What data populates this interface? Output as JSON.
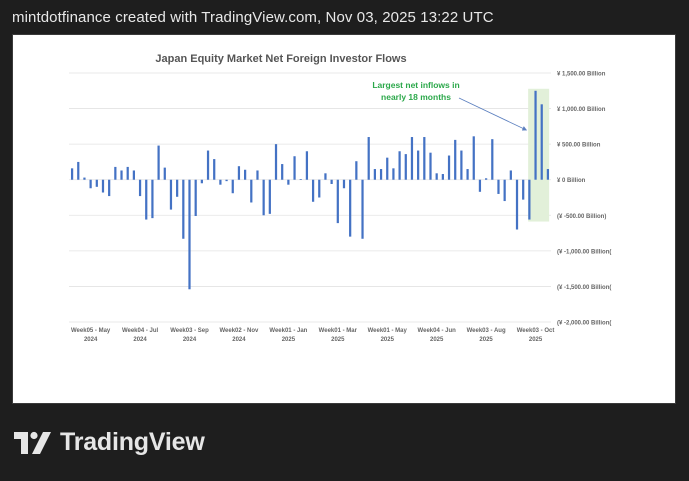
{
  "header": {
    "caption": "mintdotfinance created with TradingView.com, Nov 03, 2025 13:22 UTC"
  },
  "brand": {
    "name": "TradingView",
    "icon": "tradingview-logo-icon"
  },
  "colors": {
    "bar": "#4472C4",
    "highlight": "#E2F0D9",
    "annotation": "#2BA84A",
    "grid": "#E3E3E3"
  },
  "chart_data": {
    "type": "bar",
    "title": "Japan Equity Market Net Foreign Investor Flows",
    "ylim": [
      -2000,
      1500
    ],
    "yticks": [
      {
        "value": 1500,
        "label": "¥ 1,500.00 Billion"
      },
      {
        "value": 1000,
        "label": "¥ 1,000.00 Billion"
      },
      {
        "value": 500,
        "label": "¥ 500.00 Billion"
      },
      {
        "value": 0,
        "label": "¥ 0 Billion"
      },
      {
        "value": -500,
        "label": "(¥ -500.00 Billion)"
      },
      {
        "value": -1000,
        "label": "(¥ -1,000.00 Billion("
      },
      {
        "value": -1500,
        "label": "(¥ -1,500.00 Billion("
      },
      {
        "value": -2000,
        "label": "(¥ -2,000.00 Billion("
      }
    ],
    "xticks": [
      {
        "index": 3,
        "line1": "Week05 - May",
        "line2": "2024"
      },
      {
        "index": 11,
        "line1": "Week04 - Jul",
        "line2": "2024"
      },
      {
        "index": 19,
        "line1": "Week03 - Sep",
        "line2": "2024"
      },
      {
        "index": 27,
        "line1": "Week02 - Nov",
        "line2": "2024"
      },
      {
        "index": 35,
        "line1": "Week01 - Jan",
        "line2": "2025"
      },
      {
        "index": 43,
        "line1": "Week01 - Mar",
        "line2": "2025"
      },
      {
        "index": 51,
        "line1": "Week01 - May",
        "line2": "2025"
      },
      {
        "index": 59,
        "line1": "Week04 - Jun",
        "line2": "2025"
      },
      {
        "index": 67,
        "line1": "Week03 - Aug",
        "line2": "2025"
      },
      {
        "index": 75,
        "line1": "Week03 - Oct",
        "line2": "2025"
      }
    ],
    "values": [
      160,
      250,
      30,
      -120,
      -100,
      -180,
      -230,
      180,
      130,
      180,
      130,
      -230,
      -560,
      -540,
      480,
      170,
      -420,
      -240,
      -830,
      -1540,
      -510,
      -50,
      410,
      290,
      -70,
      -20,
      -190,
      190,
      140,
      -320,
      130,
      -500,
      -480,
      500,
      220,
      -70,
      330,
      10,
      400,
      -310,
      -250,
      90,
      -60,
      -610,
      -120,
      -800,
      260,
      -830,
      600,
      150,
      150,
      310,
      160,
      400,
      360,
      600,
      410,
      600,
      380,
      90,
      80,
      340,
      560,
      410,
      150,
      610,
      -170,
      20,
      570,
      -200,
      -300,
      130,
      -700,
      -280,
      -560,
      1250,
      1060,
      150
    ],
    "highlight_range": [
      74,
      77
    ],
    "annotation": {
      "line1": "Largest net inflows in",
      "line2": "nearly 18 months",
      "target_index": 74
    },
    "grid": true
  }
}
